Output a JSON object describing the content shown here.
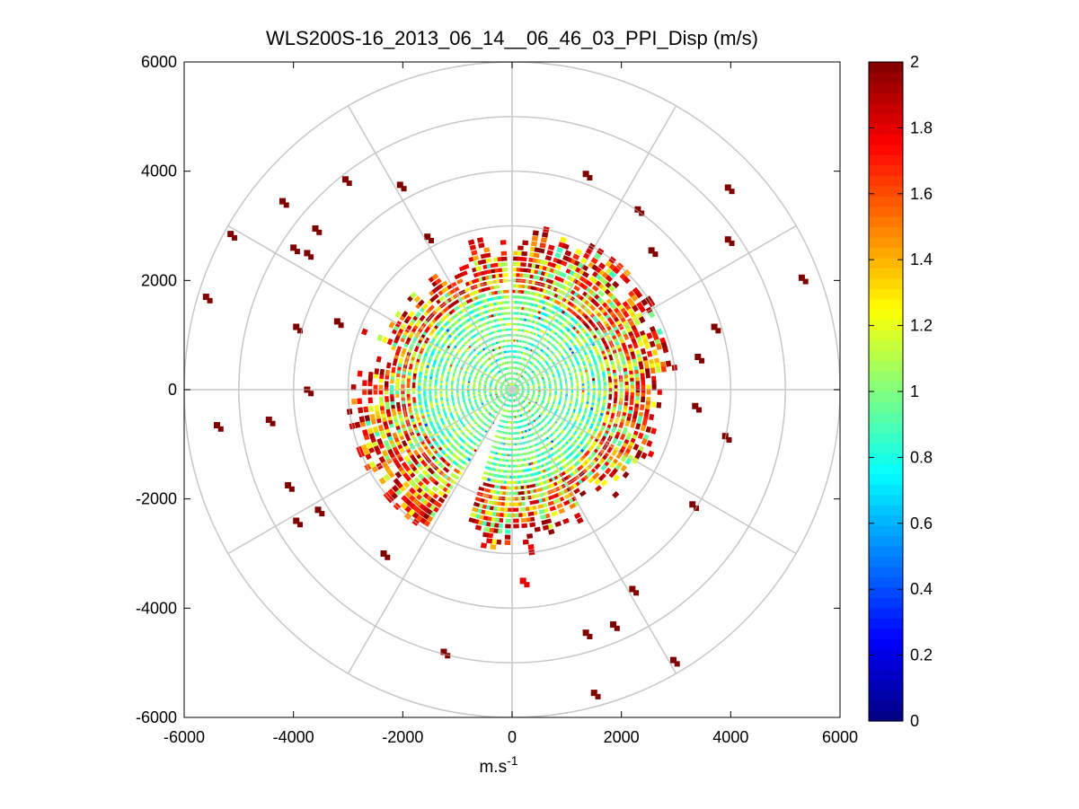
{
  "chart_data": {
    "type": "heatmap",
    "subtype": "polar-ppi-scan",
    "title": "WLS200S-16_2013_06_14__06_46_03_PPI_Disp (m/s)",
    "xlabel": "m.s",
    "xlabel_superscript": "-1",
    "ylabel": "",
    "xlim": [
      -6000,
      6000
    ],
    "ylim": [
      -6000,
      6000
    ],
    "x_ticks": [
      "-6000",
      "-4000",
      "-2000",
      "0",
      "2000",
      "4000",
      "6000"
    ],
    "y_ticks": [
      "6000",
      "4000",
      "2000",
      "0",
      "-2000",
      "-4000",
      "-6000"
    ],
    "polar_grid": {
      "rings": [
        1000,
        2000,
        3000,
        4000,
        5000,
        6000
      ],
      "spokes_deg": [
        0,
        30,
        60,
        90,
        120,
        150,
        180,
        210,
        240,
        270,
        300,
        330
      ]
    },
    "colorbar": {
      "colormap": "jet",
      "range": [
        0,
        2
      ],
      "ticks": [
        "2",
        "1.8",
        "1.6",
        "1.4",
        "1.2",
        "1",
        "0.8",
        "0.6",
        "0.4",
        "0.2",
        "0"
      ]
    },
    "data_description": {
      "dense_core_radius_m": [
        0,
        2300
      ],
      "dense_core_value_range": [
        0.7,
        1.2
      ],
      "outer_ring_radius_m": [
        2000,
        3000
      ],
      "outer_ring_value_range": [
        1.6,
        2.0
      ],
      "sparse_outliers_radius_m": [
        3000,
        5700
      ],
      "sparse_outliers_value": 2.0,
      "missing_sector_bearing_deg": [
        198,
        212
      ]
    },
    "scatter_cells": [
      {
        "x": -5600,
        "y": 1700,
        "v": 2
      },
      {
        "x": -5150,
        "y": 2850,
        "v": 2
      },
      {
        "x": -4200,
        "y": 3450,
        "v": 2
      },
      {
        "x": -3600,
        "y": 2950,
        "v": 2
      },
      {
        "x": -3750,
        "y": 2500,
        "v": 2
      },
      {
        "x": -3050,
        "y": 3850,
        "v": 2
      },
      {
        "x": -4000,
        "y": 2600,
        "v": 2
      },
      {
        "x": -5400,
        "y": -650,
        "v": 2
      },
      {
        "x": -4450,
        "y": -550,
        "v": 2
      },
      {
        "x": -4100,
        "y": -1750,
        "v": 2
      },
      {
        "x": -3950,
        "y": -2400,
        "v": 2
      },
      {
        "x": -3550,
        "y": -2200,
        "v": 2
      },
      {
        "x": -2350,
        "y": -3000,
        "v": 2
      },
      {
        "x": -1250,
        "y": -4800,
        "v": 2
      },
      {
        "x": 1350,
        "y": 3950,
        "v": 2
      },
      {
        "x": 3950,
        "y": 3700,
        "v": 2
      },
      {
        "x": 3950,
        "y": 2750,
        "v": 2
      },
      {
        "x": 5300,
        "y": 2050,
        "v": 2
      },
      {
        "x": 3900,
        "y": -850,
        "v": 2
      },
      {
        "x": 3300,
        "y": -2100,
        "v": 2
      },
      {
        "x": 2200,
        "y": -3650,
        "v": 2
      },
      {
        "x": 1350,
        "y": -4450,
        "v": 2
      },
      {
        "x": 1850,
        "y": -4300,
        "v": 2
      },
      {
        "x": 1500,
        "y": -5550,
        "v": 2
      },
      {
        "x": 2950,
        "y": -4950,
        "v": 2
      },
      {
        "x": 2300,
        "y": 3300,
        "v": 2
      },
      {
        "x": 2550,
        "y": 2550,
        "v": 2
      },
      {
        "x": -2050,
        "y": 3750,
        "v": 2
      },
      {
        "x": -1550,
        "y": 2800,
        "v": 2
      },
      {
        "x": 3700,
        "y": 1150,
        "v": 2
      },
      {
        "x": 3400,
        "y": 600,
        "v": 2
      },
      {
        "x": 3350,
        "y": -300,
        "v": 2
      },
      {
        "x": -3950,
        "y": 1150,
        "v": 2
      },
      {
        "x": -3200,
        "y": 1250,
        "v": 2
      },
      {
        "x": -3750,
        "y": 0,
        "v": 2
      },
      {
        "x": 200,
        "y": -3500,
        "v": 1.8
      }
    ]
  }
}
